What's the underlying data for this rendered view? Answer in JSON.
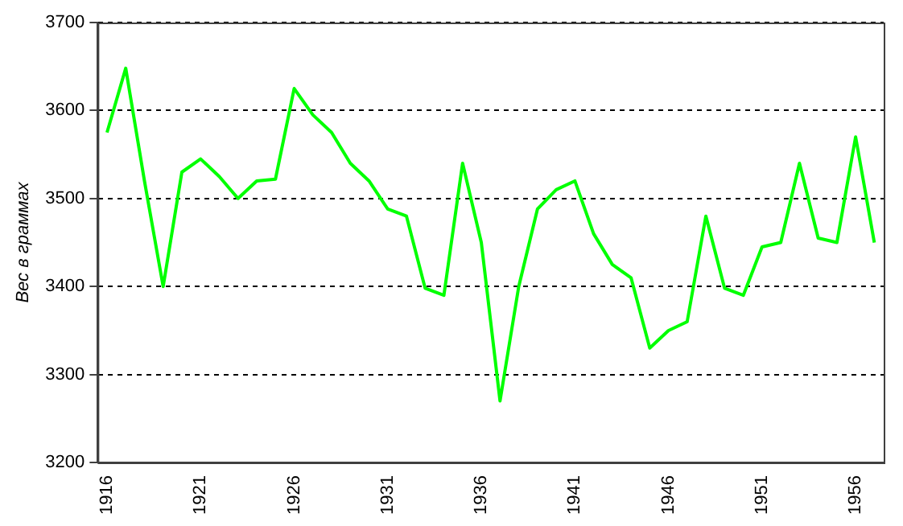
{
  "chart_data": {
    "type": "line",
    "ylabel": "Вес в граммах",
    "categories": [
      "1916",
      null,
      null,
      null,
      null,
      "1921",
      null,
      null,
      null,
      null,
      "1926",
      null,
      null,
      null,
      null,
      "1931",
      null,
      null,
      null,
      null,
      "1936",
      null,
      null,
      null,
      null,
      "1941",
      null,
      null,
      null,
      null,
      "1946",
      null,
      null,
      null,
      null,
      "1951",
      null,
      null,
      null,
      null,
      "1956",
      null
    ],
    "series": [
      {
        "color": "#00ff00",
        "values": [
          3575,
          3648,
          3520,
          3400,
          3530,
          3545,
          3525,
          3500,
          3520,
          3522,
          3625,
          3595,
          3575,
          3540,
          3520,
          3488,
          3480,
          3398,
          3390,
          3540,
          3450,
          3270,
          3400,
          3488,
          3510,
          3520,
          3460,
          3425,
          3410,
          3330,
          3350,
          3360,
          3480,
          3398,
          3390,
          3445,
          3450,
          3540,
          3455,
          3450,
          3570,
          3450
        ]
      }
    ],
    "ylim": [
      3200,
      3700
    ],
    "yticks": [
      3200,
      3300,
      3400,
      3500,
      3600,
      3700
    ],
    "grid": "y",
    "legend": false,
    "marker": "none",
    "line_style": "solid"
  }
}
